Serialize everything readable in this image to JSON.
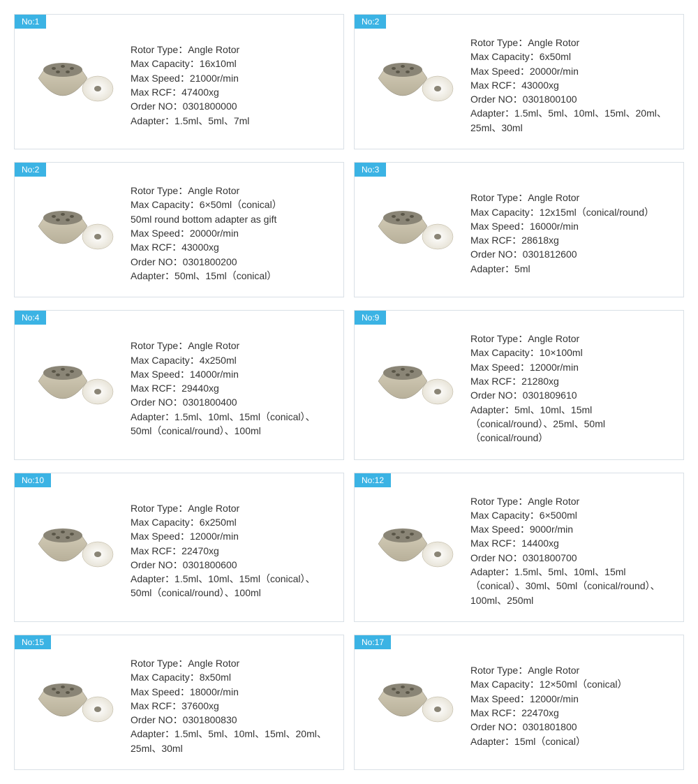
{
  "colors": {
    "badge_bg": "#3bb3e4",
    "badge_text": "#ffffff",
    "card_border": "#d9e0e6",
    "text": "#333333",
    "rotor_body": "#b8b09a",
    "rotor_body_light": "#d4cdb8",
    "rotor_top": "#8a8576",
    "lid": "#e8e4d8"
  },
  "labels": {
    "rotor_type": "Rotor Type：",
    "max_capacity": "Max Capacity：",
    "max_speed": "Max Speed：",
    "max_rcf": "Max RCF：",
    "order_no": "Order NO：",
    "adapter": "Adapter："
  },
  "cards": [
    {
      "badge": "No:1",
      "lines": [
        "Rotor Type：Angle Rotor",
        "Max Capacity：16x10ml",
        "Max Speed：21000r/min",
        "Max RCF：47400xg",
        "Order NO：0301800000",
        "Adapter：1.5ml、5ml、7ml"
      ]
    },
    {
      "badge": "No:2",
      "lines": [
        "Rotor Type：Angle Rotor",
        "Max Capacity：6x50ml",
        "Max Speed：20000r/min",
        "Max RCF：43000xg",
        "Order NO：0301800100",
        "Adapter：1.5ml、5ml、10ml、15ml、20ml、25ml、30ml"
      ]
    },
    {
      "badge": "No:2",
      "lines": [
        "Rotor Type：Angle Rotor",
        "Max Capacity：6×50ml（conical）",
        "50ml round bottom adapter as gift",
        "Max Speed：20000r/min",
        "Max RCF：43000xg",
        "Order NO：0301800200",
        "Adapter：50ml、15ml（conical）"
      ]
    },
    {
      "badge": "No:3",
      "lines": [
        "Rotor Type：Angle Rotor",
        "Max Capacity：12x15ml（conical/round）",
        "Max Speed：16000r/min",
        "Max RCF：28618xg",
        "Order NO：0301812600",
        "Adapter：5ml"
      ]
    },
    {
      "badge": "No:4",
      "lines": [
        "Rotor Type：Angle Rotor",
        "Max Capacity：4x250ml",
        "Max Speed：14000r/min",
        "Max RCF：29440xg",
        "Order NO：0301800400",
        "Adapter：1.5ml、10ml、15ml（conical）、50ml（conical/round）、100ml"
      ]
    },
    {
      "badge": "No:9",
      "lines": [
        "Rotor Type：Angle Rotor",
        "Max Capacity：10×100ml",
        "Max Speed：12000r/min",
        "Max RCF：21280xg",
        "Order NO：0301809610",
        "Adapter：5ml、10ml、15ml（conical/round）、25ml、50ml（conical/round）"
      ]
    },
    {
      "badge": "No:10",
      "lines": [
        "Rotor Type：Angle Rotor",
        "Max Capacity：6x250ml",
        "Max Speed：12000r/min",
        "Max RCF：22470xg",
        "Order NO：0301800600",
        "Adapter：1.5ml、10ml、15ml（conical）、50ml（conical/round）、100ml"
      ]
    },
    {
      "badge": "No:12",
      "lines": [
        "Rotor Type：Angle Rotor",
        "Max Capacity：6×500ml",
        "Max Speed：9000r/min",
        "Max RCF：14400xg",
        "Order NO：0301800700",
        "Adapter：1.5ml、5ml、10ml、15ml（conical）、30ml、50ml（conical/round）、100ml、250ml"
      ]
    },
    {
      "badge": "No:15",
      "lines": [
        "Rotor Type：Angle Rotor",
        "Max Capacity：8x50ml",
        "Max Speed：18000r/min",
        "Max RCF：37600xg",
        "Order NO：0301800830",
        "Adapter：1.5ml、5ml、10ml、15ml、20ml、25ml、30ml"
      ]
    },
    {
      "badge": "No:17",
      "lines": [
        "Rotor Type：Angle Rotor",
        "Max Capacity：12×50ml（conical）",
        "Max Speed：12000r/min",
        "Max RCF：22470xg",
        "Order NO：0301801800",
        "Adapter：15ml（conical）"
      ]
    }
  ]
}
